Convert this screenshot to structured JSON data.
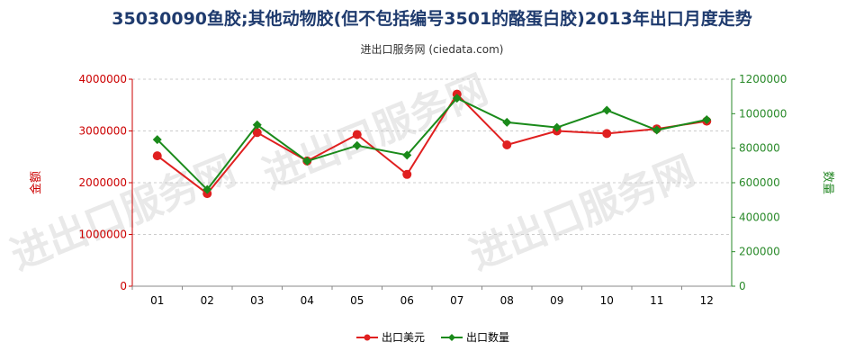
{
  "title": "35030090鱼胶;其他动物胶(但不包括编号3501的酪蛋白胶)2013年出口月度走势",
  "subtitle": "进出口服务网 (ciedata.com)",
  "watermark": "进出口服务网",
  "colors": {
    "left_axis": "#cc0000",
    "right_axis": "#2a8a2a",
    "grid": "#cccccc"
  },
  "chart_data": {
    "type": "line",
    "categories": [
      "01",
      "02",
      "03",
      "04",
      "05",
      "06",
      "07",
      "08",
      "09",
      "10",
      "11",
      "12"
    ],
    "y_left": {
      "label": "金额",
      "lim": [
        0,
        4000000
      ],
      "ticks": [
        0,
        1000000,
        2000000,
        3000000,
        4000000
      ]
    },
    "y_right": {
      "label": "数量",
      "lim": [
        0,
        1200000
      ],
      "ticks": [
        0,
        200000,
        400000,
        600000,
        800000,
        1000000,
        1200000
      ]
    },
    "series": [
      {
        "name": "出口美元",
        "axis": "left",
        "color": "#e02020",
        "values": [
          2520000,
          1790000,
          2970000,
          2420000,
          2930000,
          2160000,
          3710000,
          2730000,
          3000000,
          2950000,
          3040000,
          3190000
        ]
      },
      {
        "name": "出口数量",
        "axis": "right",
        "color": "#1a8a1a",
        "values": [
          850000,
          560000,
          935000,
          725000,
          815000,
          760000,
          1090000,
          950000,
          920000,
          1020000,
          905000,
          965000
        ]
      }
    ],
    "legend_position": "bottom-center",
    "grid": true
  }
}
